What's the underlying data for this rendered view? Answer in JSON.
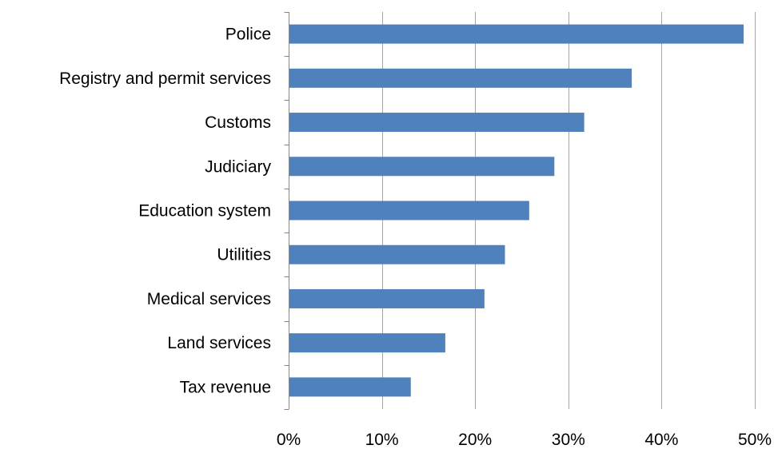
{
  "chart_data": {
    "type": "bar",
    "orientation": "horizontal",
    "title": "",
    "xlabel": "",
    "ylabel": "",
    "categories": [
      "Police",
      "Registry and permit services",
      "Customs",
      "Judiciary",
      "Education system",
      "Utilities",
      "Medical services",
      "Land services",
      "Tax revenue"
    ],
    "values": [
      48.8,
      36.8,
      31.7,
      28.5,
      25.8,
      23.2,
      21.0,
      16.8,
      13.1
    ],
    "xlim": [
      0,
      50
    ],
    "x_ticks": [
      0,
      10,
      20,
      30,
      40,
      50
    ],
    "x_tick_labels": [
      "0%",
      "10%",
      "20%",
      "30%",
      "40%",
      "50%"
    ],
    "grid": "vertical",
    "legend": "none",
    "bar_color": "#4f81bd",
    "gridline_color": "#a6a6a6"
  }
}
